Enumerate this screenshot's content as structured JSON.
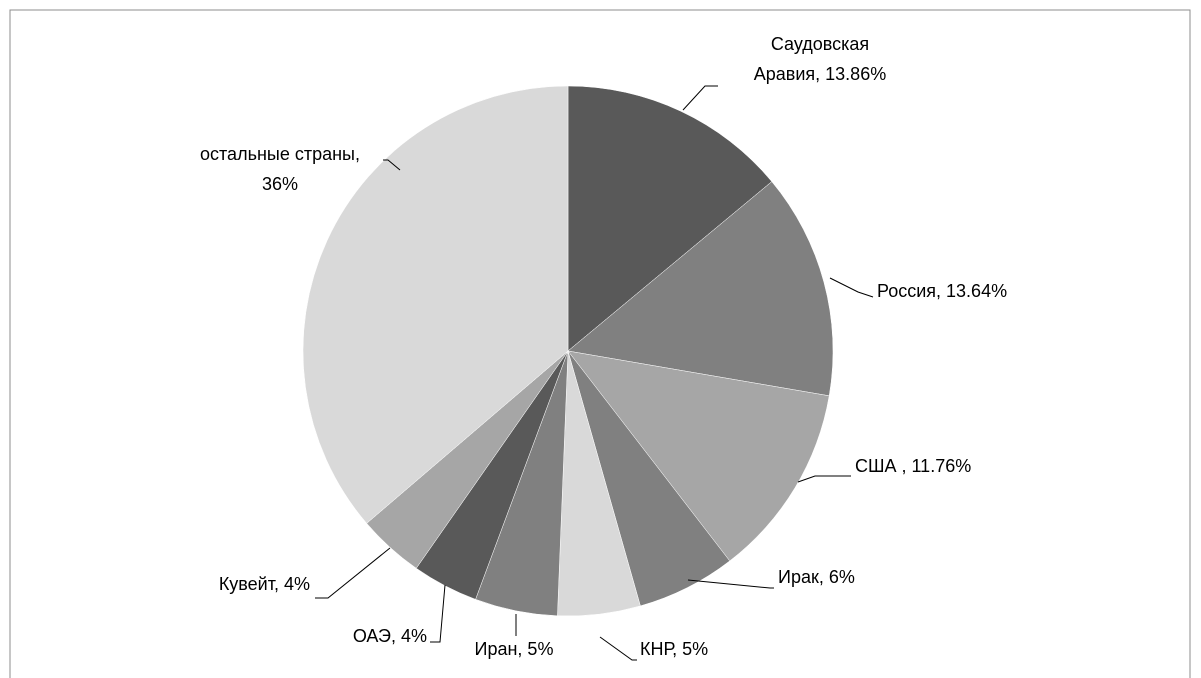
{
  "chart_data": {
    "type": "pie",
    "labels": [
      [
        "Саудовская",
        "Аравия, 13.86%"
      ],
      [
        "Россия, 13.64%"
      ],
      [
        "США , 11.76%"
      ],
      [
        "Ирак, 6%"
      ],
      [
        "КНР, 5%"
      ],
      [
        "Иран, 5%"
      ],
      [
        "ОАЭ, 4%"
      ],
      [
        "Кувейт, 4%"
      ],
      [
        "остальные страны,",
        "36%"
      ]
    ],
    "values": [
      13.86,
      13.64,
      11.76,
      6,
      5,
      5,
      4,
      4,
      36
    ],
    "colors": [
      "#595959",
      "#808080",
      "#a6a6a6",
      "#808080",
      "#d9d9d9",
      "#808080",
      "#595959",
      "#a6a6a6",
      "#d9d9d9"
    ]
  }
}
